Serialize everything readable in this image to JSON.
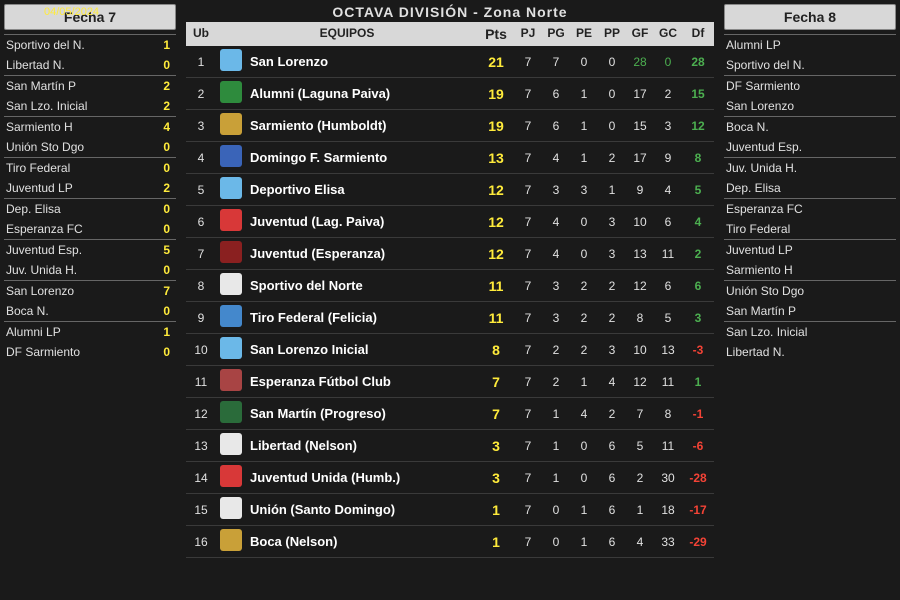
{
  "date": "04/05/2024",
  "title": "OCTAVA DIVISIÓN - Zona Norte",
  "colors": {
    "yellow": "#ffeb3b",
    "green": "#4caf50",
    "red": "#f44336",
    "white": "#ffffff"
  },
  "left": {
    "header": "Fecha 7",
    "matches": [
      {
        "h": "Sportivo del N.",
        "hs": "1",
        "a": "Libertad N.",
        "as": "0"
      },
      {
        "h": "San Martín P",
        "hs": "2",
        "a": "San Lzo. Inicial",
        "as": "2"
      },
      {
        "h": "Sarmiento H",
        "hs": "4",
        "a": "Unión Sto Dgo",
        "as": "0"
      },
      {
        "h": "Tiro Federal",
        "hs": "0",
        "a": "Juventud LP",
        "as": "2"
      },
      {
        "h": "Dep. Elisa",
        "hs": "0",
        "a": "Esperanza FC",
        "as": "0"
      },
      {
        "h": "Juventud Esp.",
        "hs": "5",
        "a": "Juv. Unida H.",
        "as": "0"
      },
      {
        "h": "San Lorenzo",
        "hs": "7",
        "a": "Boca N.",
        "as": "0"
      },
      {
        "h": "Alumni LP",
        "hs": "1",
        "a": "DF Sarmiento",
        "as": "0"
      }
    ]
  },
  "right": {
    "header": "Fecha 8",
    "matches": [
      {
        "h": "Alumni LP",
        "a": "Sportivo del N."
      },
      {
        "h": "DF Sarmiento",
        "a": "San Lorenzo"
      },
      {
        "h": "Boca N.",
        "a": "Juventud Esp."
      },
      {
        "h": "Juv. Unida H.",
        "a": "Dep. Elisa"
      },
      {
        "h": "Esperanza FC",
        "a": "Tiro Federal"
      },
      {
        "h": "Juventud LP",
        "a": "Sarmiento H"
      },
      {
        "h": "Unión Sto Dgo",
        "a": "San Martín P"
      },
      {
        "h": "San Lzo. Inicial",
        "a": "Libertad N."
      }
    ]
  },
  "headers": {
    "ub": "Ub",
    "equipos": "EQUIPOS",
    "pts": "Pts",
    "pj": "PJ",
    "pg": "PG",
    "pe": "PE",
    "pp": "PP",
    "gf": "GF",
    "gc": "GC",
    "df": "Df"
  },
  "standings": [
    {
      "ub": 1,
      "badge": "#6bb8e8",
      "team": "San Lorenzo",
      "pts": 21,
      "pj": 7,
      "pg": 7,
      "pe": 0,
      "pp": 0,
      "gf": 28,
      "gc": 0,
      "df": 28,
      "gfc": "#4caf50",
      "gcc": "#4caf50",
      "dfc": "#4caf50"
    },
    {
      "ub": 2,
      "badge": "#2e8b3d",
      "team": "Alumni (Laguna Paiva)",
      "pts": 19,
      "pj": 7,
      "pg": 6,
      "pe": 1,
      "pp": 0,
      "gf": 17,
      "gc": 2,
      "df": 15,
      "dfc": "#4caf50"
    },
    {
      "ub": 3,
      "badge": "#c9a038",
      "team": "Sarmiento (Humboldt)",
      "pts": 19,
      "pj": 7,
      "pg": 6,
      "pe": 1,
      "pp": 0,
      "gf": 15,
      "gc": 3,
      "df": 12,
      "dfc": "#4caf50"
    },
    {
      "ub": 4,
      "badge": "#3a64b8",
      "team": "Domingo F. Sarmiento",
      "pts": 13,
      "pj": 7,
      "pg": 4,
      "pe": 1,
      "pp": 2,
      "gf": 17,
      "gc": 9,
      "df": 8,
      "dfc": "#4caf50"
    },
    {
      "ub": 5,
      "badge": "#6bb8e8",
      "team": "Deportivo Elisa",
      "pts": 12,
      "pj": 7,
      "pg": 3,
      "pe": 3,
      "pp": 1,
      "gf": 9,
      "gc": 4,
      "df": 5,
      "dfc": "#4caf50"
    },
    {
      "ub": 6,
      "badge": "#d83838",
      "team": "Juventud (Lag. Paiva)",
      "pts": 12,
      "pj": 7,
      "pg": 4,
      "pe": 0,
      "pp": 3,
      "gf": 10,
      "gc": 6,
      "df": 4,
      "dfc": "#4caf50"
    },
    {
      "ub": 7,
      "badge": "#8a2020",
      "team": "Juventud (Esperanza)",
      "pts": 12,
      "pj": 7,
      "pg": 4,
      "pe": 0,
      "pp": 3,
      "gf": 13,
      "gc": 11,
      "df": 2,
      "dfc": "#4caf50"
    },
    {
      "ub": 8,
      "badge": "#e8e8e8",
      "team": "Sportivo del Norte",
      "pts": 11,
      "pj": 7,
      "pg": 3,
      "pe": 2,
      "pp": 2,
      "gf": 12,
      "gc": 6,
      "df": 6,
      "dfc": "#4caf50"
    },
    {
      "ub": 9,
      "badge": "#4488cc",
      "team": "Tiro Federal (Felicia)",
      "pts": 11,
      "pj": 7,
      "pg": 3,
      "pe": 2,
      "pp": 2,
      "gf": 8,
      "gc": 5,
      "df": 3,
      "dfc": "#4caf50"
    },
    {
      "ub": 10,
      "badge": "#6bb8e8",
      "team": "San Lorenzo Inicial",
      "pts": 8,
      "pj": 7,
      "pg": 2,
      "pe": 2,
      "pp": 3,
      "gf": 10,
      "gc": 13,
      "df": -3,
      "dfc": "#f44336"
    },
    {
      "ub": 11,
      "badge": "#a84444",
      "team": "Esperanza Fútbol Club",
      "pts": 7,
      "pj": 7,
      "pg": 2,
      "pe": 1,
      "pp": 4,
      "gf": 12,
      "gc": 11,
      "df": 1,
      "dfc": "#4caf50"
    },
    {
      "ub": 12,
      "badge": "#2a6b3a",
      "team": "San Martín (Progreso)",
      "pts": 7,
      "pj": 7,
      "pg": 1,
      "pe": 4,
      "pp": 2,
      "gf": 7,
      "gc": 8,
      "df": -1,
      "dfc": "#f44336"
    },
    {
      "ub": 13,
      "badge": "#e8e8e8",
      "team": "Libertad (Nelson)",
      "pts": 3,
      "pj": 7,
      "pg": 1,
      "pe": 0,
      "pp": 6,
      "gf": 5,
      "gc": 11,
      "df": -6,
      "dfc": "#f44336"
    },
    {
      "ub": 14,
      "badge": "#d83838",
      "team": "Juventud Unida (Humb.)",
      "pts": 3,
      "pj": 7,
      "pg": 1,
      "pe": 0,
      "pp": 6,
      "gf": 2,
      "gc": 30,
      "df": -28,
      "dfc": "#f44336"
    },
    {
      "ub": 15,
      "badge": "#e8e8e8",
      "team": "Unión (Santo Domingo)",
      "pts": 1,
      "pj": 7,
      "pg": 0,
      "pe": 1,
      "pp": 6,
      "gf": 1,
      "gc": 18,
      "df": -17,
      "dfc": "#f44336"
    },
    {
      "ub": 16,
      "badge": "#c9a038",
      "team": "Boca (Nelson)",
      "pts": 1,
      "pj": 7,
      "pg": 0,
      "pe": 1,
      "pp": 6,
      "gf": 4,
      "gc": 33,
      "df": -29,
      "dfc": "#f44336"
    }
  ]
}
